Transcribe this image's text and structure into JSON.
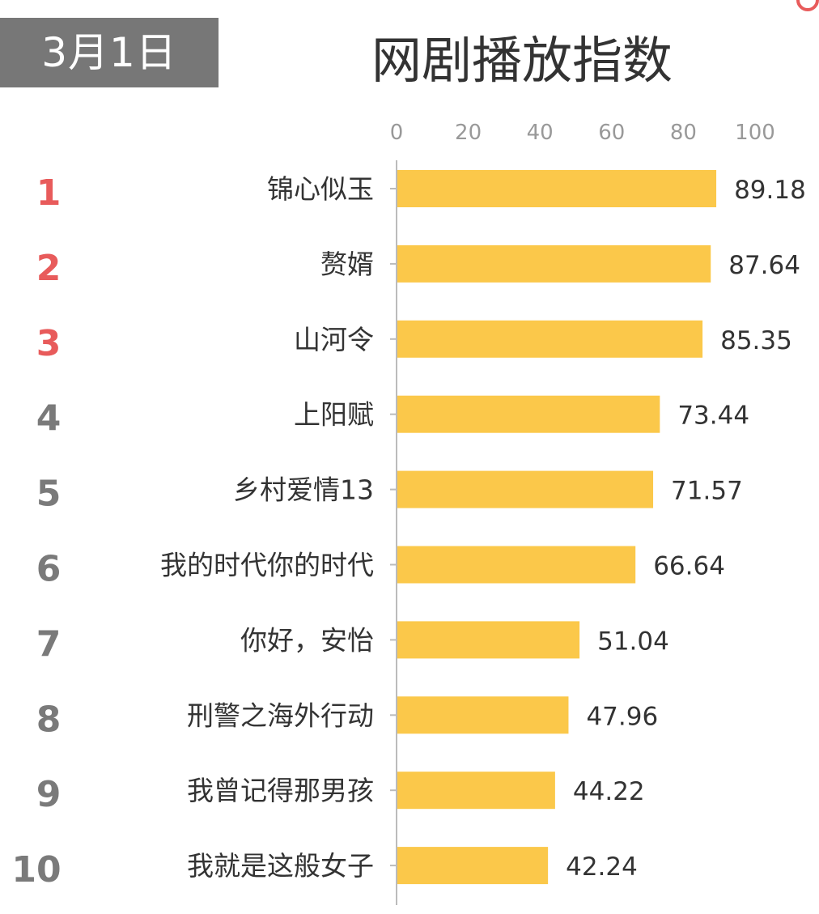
{
  "header": {
    "date": "3月1日",
    "title": "网剧播放指数"
  },
  "colors": {
    "bar": "#fbc84a",
    "rank_top": "#e85b5b",
    "rank_rest": "#7a7a7a",
    "badge_bg": "#777777"
  },
  "chart_data": {
    "type": "bar",
    "orientation": "horizontal",
    "title": "网剧播放指数",
    "xlim": [
      0,
      100
    ],
    "ticks": [
      "0",
      "20",
      "40",
      "60",
      "80",
      "100"
    ],
    "ranks": [
      "1",
      "2",
      "3",
      "4",
      "5",
      "6",
      "7",
      "8",
      "9",
      "10"
    ],
    "categories": [
      "锦心似玉",
      "赘婿",
      "山河令",
      "上阳赋",
      "乡村爱情13",
      "我的时代你的时代",
      "你好，安怡",
      "刑警之海外行动",
      "我曾记得那男孩",
      "我就是这般女子"
    ],
    "values": [
      89.18,
      87.64,
      85.35,
      73.44,
      71.57,
      66.64,
      51.04,
      47.96,
      44.22,
      42.24
    ],
    "value_labels": [
      "89.18",
      "87.64",
      "85.35",
      "73.44",
      "71.57",
      "66.64",
      "51.04",
      "47.96",
      "44.22",
      "42.24"
    ],
    "grid": false,
    "legend": "none"
  }
}
